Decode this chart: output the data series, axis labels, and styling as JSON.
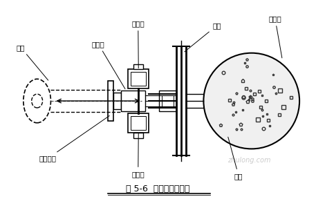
{
  "title": "图 5-6  钢管横撑安装图",
  "bg_color": "#ffffff",
  "line_color": "#000000",
  "dashed_color": "#333333",
  "labels": {
    "gang_guan": "钢管",
    "huo_luo_tou": "活络头",
    "qian_jin_ding_top": "千斤顶",
    "qian_jin_ding_bot": "千斤顶",
    "huo_luo_suo_tou": "活络缩头",
    "gang_leng": "钢楞",
    "zhu_zhu_zhuang": "桩注桩",
    "wei_leng": "围楞"
  },
  "watermark": "zhulong.com"
}
